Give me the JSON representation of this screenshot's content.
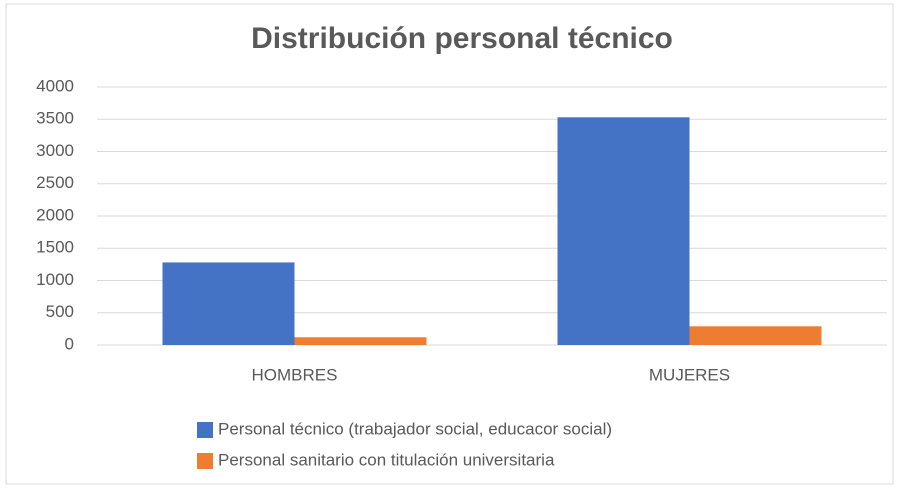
{
  "chart_data": {
    "type": "bar",
    "title": "Distribución personal técnico",
    "categories": [
      "HOMBRES",
      "MUJERES"
    ],
    "series": [
      {
        "name": "Personal técnico (trabajador social, educacor social)",
        "color": "#4472c4",
        "values": [
          1280,
          3530
        ]
      },
      {
        "name": "Personal sanitario con titulación universitaria",
        "color": "#ed7d31",
        "values": [
          120,
          290
        ]
      }
    ],
    "ylim": [
      0,
      4000
    ],
    "yticks": [
      0,
      500,
      1000,
      1500,
      2000,
      2500,
      3000,
      3500,
      4000
    ],
    "grid": true,
    "legend": "bottom"
  }
}
